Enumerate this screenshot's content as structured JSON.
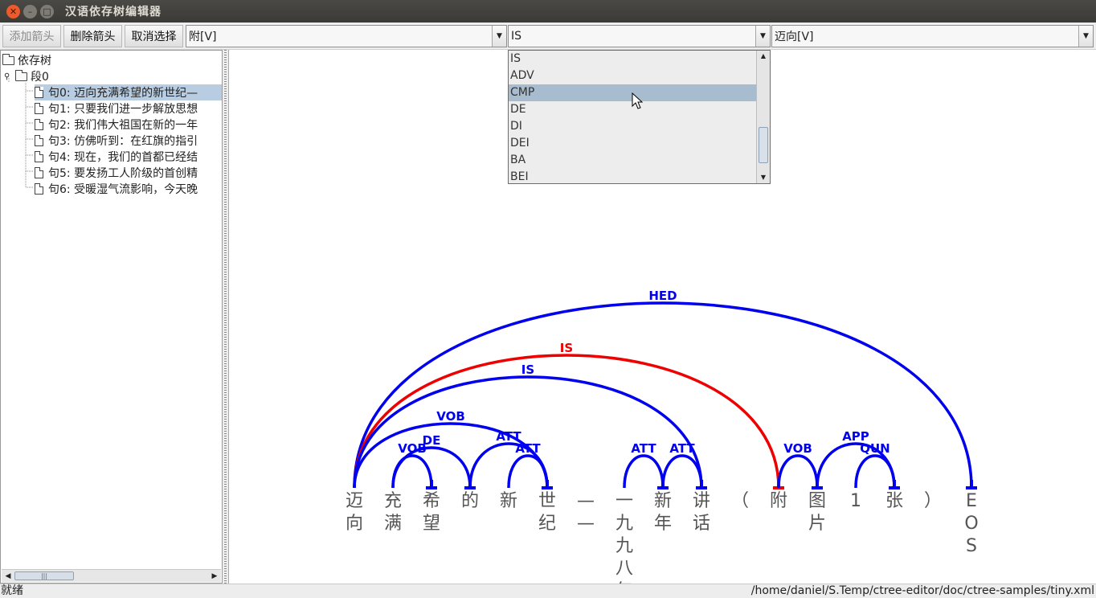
{
  "window": {
    "title": "汉语依存树编辑器"
  },
  "toolbar": {
    "add_arrow": "添加箭头",
    "delete_arrow": "删除箭头",
    "cancel_selection": "取消选择",
    "combo_dependent": "附[V]",
    "combo_relation": "IS",
    "combo_head": "迈向[V]"
  },
  "tree": {
    "root": "依存树",
    "paragraph": "段0",
    "sentences": [
      "句0: 迈向充满希望的新世纪—",
      "句1: 只要我们进一步解放思想",
      "句2: 我们伟大祖国在新的一年",
      "句3: 仿佛听到：在红旗的指引",
      "句4: 现在，我们的首都已经结",
      "句5: 要发扬工人阶级的首创精",
      "句6: 受暖湿气流影响，今天晚"
    ]
  },
  "dropdown": {
    "items": [
      "IS",
      "ADV",
      "CMP",
      "DE",
      "DI",
      "DEI",
      "BA",
      "BEI"
    ],
    "highlighted": "CMP"
  },
  "status": {
    "left": "就绪",
    "right": "/home/daniel/S.Temp/ctree-editor/doc/ctree-samples/tiny.xml"
  },
  "colors": {
    "arc": "#0000ee",
    "selected_arc": "#ee0000",
    "selection": "#b8cde1"
  },
  "sentence_tokens": [
    {
      "chars": [
        "迈",
        "向"
      ]
    },
    {
      "chars": [
        "充",
        "满"
      ]
    },
    {
      "chars": [
        "希",
        "望"
      ]
    },
    {
      "chars": [
        "的"
      ]
    },
    {
      "chars": [
        "新"
      ]
    },
    {
      "chars": [
        "世",
        "纪"
      ]
    },
    {
      "chars": [
        "—",
        "—"
      ]
    },
    {
      "chars": [
        "一",
        "九",
        "九",
        "八",
        "年"
      ]
    },
    {
      "chars": [
        "新",
        "年"
      ]
    },
    {
      "chars": [
        "讲",
        "话"
      ]
    },
    {
      "chars": [
        "（"
      ]
    },
    {
      "chars": [
        "附"
      ]
    },
    {
      "chars": [
        "图",
        "片"
      ]
    },
    {
      "chars": [
        "1"
      ]
    },
    {
      "chars": [
        "张"
      ]
    },
    {
      "chars": [
        "）"
      ]
    },
    {
      "chars": [
        "E",
        "O",
        "S"
      ]
    }
  ],
  "arcs": [
    {
      "head": 0,
      "dep": 16,
      "label": "HED",
      "selected": false
    },
    {
      "head": 0,
      "dep": 11,
      "label": "IS",
      "selected": true
    },
    {
      "head": 0,
      "dep": 9,
      "label": "IS",
      "selected": false
    },
    {
      "head": 0,
      "dep": 5,
      "label": "VOB",
      "selected": false
    },
    {
      "head": 1,
      "dep": 3,
      "label": "DE",
      "selected": false
    },
    {
      "head": 1,
      "dep": 2,
      "label": "VOB",
      "selected": false
    },
    {
      "head": 3,
      "dep": 5,
      "label": "ATT",
      "selected": false
    },
    {
      "head": 4,
      "dep": 5,
      "label": "ATT",
      "selected": false
    },
    {
      "head": 7,
      "dep": 8,
      "label": "ATT",
      "selected": false
    },
    {
      "head": 8,
      "dep": 9,
      "label": "ATT",
      "selected": false
    },
    {
      "head": 11,
      "dep": 12,
      "label": "VOB",
      "selected": false
    },
    {
      "head": 12,
      "dep": 14,
      "label": "APP",
      "selected": false
    },
    {
      "head": 13,
      "dep": 14,
      "label": "QUN",
      "selected": false
    }
  ]
}
